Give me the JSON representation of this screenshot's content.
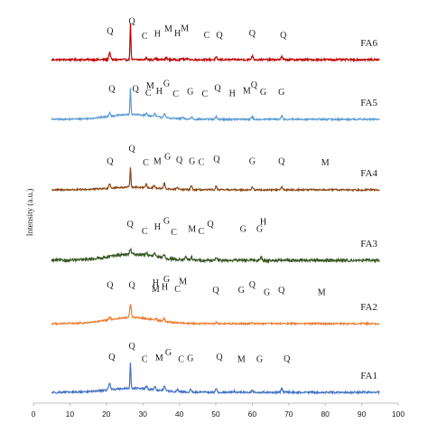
{
  "chart_data": {
    "type": "line",
    "xlabel": "",
    "ylabel": "Intensity (a.u.)",
    "xlim": [
      0,
      100
    ],
    "x_ticks": [
      0,
      10,
      20,
      30,
      40,
      50,
      60,
      70,
      80,
      90,
      100
    ],
    "y_ticks_shown": false,
    "legend": "none",
    "series": [
      {
        "name": "FA6",
        "color": "#c00000",
        "x_range": [
          5,
          95
        ],
        "baseline_level": 0.0,
        "hump": 0.0,
        "noise": 0.07,
        "peaks": [
          {
            "x": 20.9,
            "height": 0.55
          },
          {
            "x": 26.6,
            "height": 2.6
          },
          {
            "x": 31.0,
            "height": 0.14
          },
          {
            "x": 33.3,
            "height": 0.12
          },
          {
            "x": 36.5,
            "height": 0.16
          },
          {
            "x": 40.8,
            "height": 0.1
          },
          {
            "x": 42.4,
            "height": 0.12
          },
          {
            "x": 50.1,
            "height": 0.16
          },
          {
            "x": 60.0,
            "height": 0.3
          },
          {
            "x": 68.1,
            "height": 0.2
          }
        ],
        "peak_labels": [
          {
            "text": "Q",
            "x": 21.0,
            "level": 0.55
          },
          {
            "text": "Q",
            "x": 27.0,
            "level": 1.45
          },
          {
            "text": "C",
            "x": 30.5,
            "level": 0.1
          },
          {
            "text": "H",
            "x": 34.0,
            "level": 0.3
          },
          {
            "text": "M",
            "x": 37.0,
            "level": 0.75
          },
          {
            "text": "H",
            "x": 39.5,
            "level": 0.35
          },
          {
            "text": "M",
            "x": 41.5,
            "level": 0.8
          },
          {
            "text": "C",
            "x": 47.5,
            "level": 0.15
          },
          {
            "text": "Q",
            "x": 51.0,
            "level": 0.15
          },
          {
            "text": "Q",
            "x": 60.0,
            "level": 0.35
          },
          {
            "text": "Q",
            "x": 68.5,
            "level": 0.15
          }
        ]
      },
      {
        "name": "FA5",
        "color": "#5b9bd5",
        "x_range": [
          5,
          95
        ],
        "baseline_level": 0.0,
        "hump": 0.35,
        "noise": 0.06,
        "peaks": [
          {
            "x": 20.9,
            "height": 0.3
          },
          {
            "x": 26.6,
            "height": 2.0
          },
          {
            "x": 31.0,
            "height": 0.15
          },
          {
            "x": 33.3,
            "height": 0.18
          },
          {
            "x": 35.9,
            "height": 0.3
          },
          {
            "x": 40.9,
            "height": 0.12
          },
          {
            "x": 43.4,
            "height": 0.18
          },
          {
            "x": 50.1,
            "height": 0.2
          },
          {
            "x": 60.0,
            "height": 0.18
          },
          {
            "x": 68.1,
            "height": 0.25
          }
        ],
        "peak_labels": [
          {
            "text": "Q",
            "x": 21.5,
            "level": 0.7
          },
          {
            "text": "Q",
            "x": 28.0,
            "level": 0.7
          },
          {
            "text": "M",
            "x": 32.0,
            "level": 1.0
          },
          {
            "text": "G",
            "x": 36.5,
            "level": 1.2
          },
          {
            "text": "C",
            "x": 31.5,
            "level": 0.35
          },
          {
            "text": "H",
            "x": 34.5,
            "level": 0.5
          },
          {
            "text": "C",
            "x": 39.0,
            "level": 0.25
          },
          {
            "text": "G",
            "x": 43.0,
            "level": 0.45
          },
          {
            "text": "C",
            "x": 47.0,
            "level": 0.25
          },
          {
            "text": "Q",
            "x": 50.5,
            "level": 0.8
          },
          {
            "text": "H",
            "x": 54.5,
            "level": 0.3
          },
          {
            "text": "M",
            "x": 58.5,
            "level": 0.55
          },
          {
            "text": "Q",
            "x": 60.5,
            "level": 1.1
          },
          {
            "text": "G",
            "x": 63.0,
            "level": 0.4
          },
          {
            "text": "G",
            "x": 68.0,
            "level": 0.4
          }
        ]
      },
      {
        "name": "FA4",
        "color": "#8b4513",
        "x_range": [
          5,
          95
        ],
        "baseline_level": 0.0,
        "hump": 0.2,
        "noise": 0.06,
        "peaks": [
          {
            "x": 20.9,
            "height": 0.35
          },
          {
            "x": 26.6,
            "height": 1.5
          },
          {
            "x": 30.9,
            "height": 0.25
          },
          {
            "x": 33.1,
            "height": 0.2
          },
          {
            "x": 35.9,
            "height": 0.4
          },
          {
            "x": 39.4,
            "height": 0.15
          },
          {
            "x": 43.3,
            "height": 0.3
          },
          {
            "x": 50.1,
            "height": 0.25
          },
          {
            "x": 60.0,
            "height": 0.18
          },
          {
            "x": 68.1,
            "height": 0.22
          }
        ],
        "peak_labels": [
          {
            "text": "Q",
            "x": 21.0,
            "level": 0.55
          },
          {
            "text": "Q",
            "x": 27.0,
            "level": 1.7
          },
          {
            "text": "C",
            "x": 30.8,
            "level": 0.4
          },
          {
            "text": "M",
            "x": 34.0,
            "level": 0.55
          },
          {
            "text": "G",
            "x": 36.8,
            "level": 0.95
          },
          {
            "text": "Q",
            "x": 40.0,
            "level": 0.65
          },
          {
            "text": "G",
            "x": 43.5,
            "level": 0.55
          },
          {
            "text": "C",
            "x": 46.0,
            "level": 0.45
          },
          {
            "text": "Q",
            "x": 50.2,
            "level": 0.75
          },
          {
            "text": "G",
            "x": 60.0,
            "level": 0.55
          },
          {
            "text": "Q",
            "x": 68.0,
            "level": 0.55
          },
          {
            "text": "M",
            "x": 80.0,
            "level": 0.4
          }
        ]
      },
      {
        "name": "FA3",
        "color": "#375623",
        "x_range": [
          5,
          95
        ],
        "baseline_level": 0.0,
        "hump": 0.45,
        "noise": 0.1,
        "peaks": [
          {
            "x": 26.6,
            "height": 0.35
          },
          {
            "x": 31.0,
            "height": 0.2
          },
          {
            "x": 33.2,
            "height": 0.25
          },
          {
            "x": 35.8,
            "height": 0.3
          },
          {
            "x": 41.8,
            "height": 0.3
          },
          {
            "x": 43.3,
            "height": 0.25
          },
          {
            "x": 50.0,
            "height": 0.15
          },
          {
            "x": 62.4,
            "height": 0.25
          }
        ],
        "peak_labels": [
          {
            "text": "Q",
            "x": 26.5,
            "level": 1.25
          },
          {
            "text": "C",
            "x": 30.5,
            "level": 0.6
          },
          {
            "text": "H",
            "x": 34.0,
            "level": 1.0
          },
          {
            "text": "G",
            "x": 36.5,
            "level": 1.55
          },
          {
            "text": "C",
            "x": 38.5,
            "level": 0.5
          },
          {
            "text": "M",
            "x": 43.5,
            "level": 0.8
          },
          {
            "text": "C",
            "x": 46.0,
            "level": 0.6
          },
          {
            "text": "Q",
            "x": 48.5,
            "level": 1.25
          },
          {
            "text": "G",
            "x": 57.5,
            "level": 0.8
          },
          {
            "text": "G",
            "x": 62.0,
            "level": 0.8
          },
          {
            "text": "H",
            "x": 63.0,
            "level": 1.45
          }
        ]
      },
      {
        "name": "FA2",
        "color": "#ed7d31",
        "x_range": [
          5,
          95
        ],
        "baseline_level": 0.0,
        "hump": 0.45,
        "noise": 0.06,
        "peaks": [
          {
            "x": 20.9,
            "height": 0.2
          },
          {
            "x": 26.6,
            "height": 1.0
          },
          {
            "x": 33.5,
            "height": 0.15
          },
          {
            "x": 35.8,
            "height": 0.2
          },
          {
            "x": 50.1,
            "height": 0.1
          },
          {
            "x": 60.0,
            "height": 0.08
          }
        ],
        "peak_labels": [
          {
            "text": "Q",
            "x": 21.0,
            "level": 1.45
          },
          {
            "text": "Q",
            "x": 27.0,
            "level": 1.45
          },
          {
            "text": "M",
            "x": 33.5,
            "level": 1.1
          },
          {
            "text": "H",
            "x": 33.5,
            "level": 1.65
          },
          {
            "text": "H",
            "x": 36.0,
            "level": 1.3
          },
          {
            "text": "G",
            "x": 36.5,
            "level": 2.0
          },
          {
            "text": "C",
            "x": 39.5,
            "level": 1.1
          },
          {
            "text": "M",
            "x": 41.0,
            "level": 1.8
          },
          {
            "text": "Q",
            "x": 50.0,
            "level": 1.0
          },
          {
            "text": "G",
            "x": 57.0,
            "level": 1.0
          },
          {
            "text": "Q",
            "x": 60.0,
            "level": 1.5
          },
          {
            "text": "G",
            "x": 64.0,
            "level": 0.8
          },
          {
            "text": "Q",
            "x": 68.0,
            "level": 1.0
          },
          {
            "text": "M",
            "x": 79.0,
            "level": 0.8
          }
        ]
      },
      {
        "name": "FA1",
        "color": "#4472c4",
        "x_range": [
          5,
          95
        ],
        "baseline_level": 0.0,
        "hump": 0.3,
        "noise": 0.07,
        "peaks": [
          {
            "x": 20.9,
            "height": 0.55
          },
          {
            "x": 26.6,
            "height": 1.9
          },
          {
            "x": 31.0,
            "height": 0.2
          },
          {
            "x": 33.3,
            "height": 0.25
          },
          {
            "x": 35.9,
            "height": 0.35
          },
          {
            "x": 39.5,
            "height": 0.15
          },
          {
            "x": 43.1,
            "height": 0.2
          },
          {
            "x": 50.1,
            "height": 0.25
          },
          {
            "x": 55.0,
            "height": 0.1
          },
          {
            "x": 60.0,
            "height": 0.12
          },
          {
            "x": 68.1,
            "height": 0.25
          }
        ],
        "peak_labels": [
          {
            "text": "Q",
            "x": 21.5,
            "level": 1.15
          },
          {
            "text": "Q",
            "x": 27.0,
            "level": 2.15
          },
          {
            "text": "C",
            "x": 30.5,
            "level": 0.95
          },
          {
            "text": "M",
            "x": 34.5,
            "level": 1.1
          },
          {
            "text": "G",
            "x": 37.0,
            "level": 1.6
          },
          {
            "text": "C",
            "x": 40.5,
            "level": 0.95
          },
          {
            "text": "G",
            "x": 43.0,
            "level": 1.05
          },
          {
            "text": "Q",
            "x": 51.0,
            "level": 1.15
          },
          {
            "text": "M",
            "x": 57.0,
            "level": 0.95
          },
          {
            "text": "G",
            "x": 62.0,
            "level": 0.95
          },
          {
            "text": "Q",
            "x": 69.5,
            "level": 1.0
          }
        ]
      }
    ]
  }
}
